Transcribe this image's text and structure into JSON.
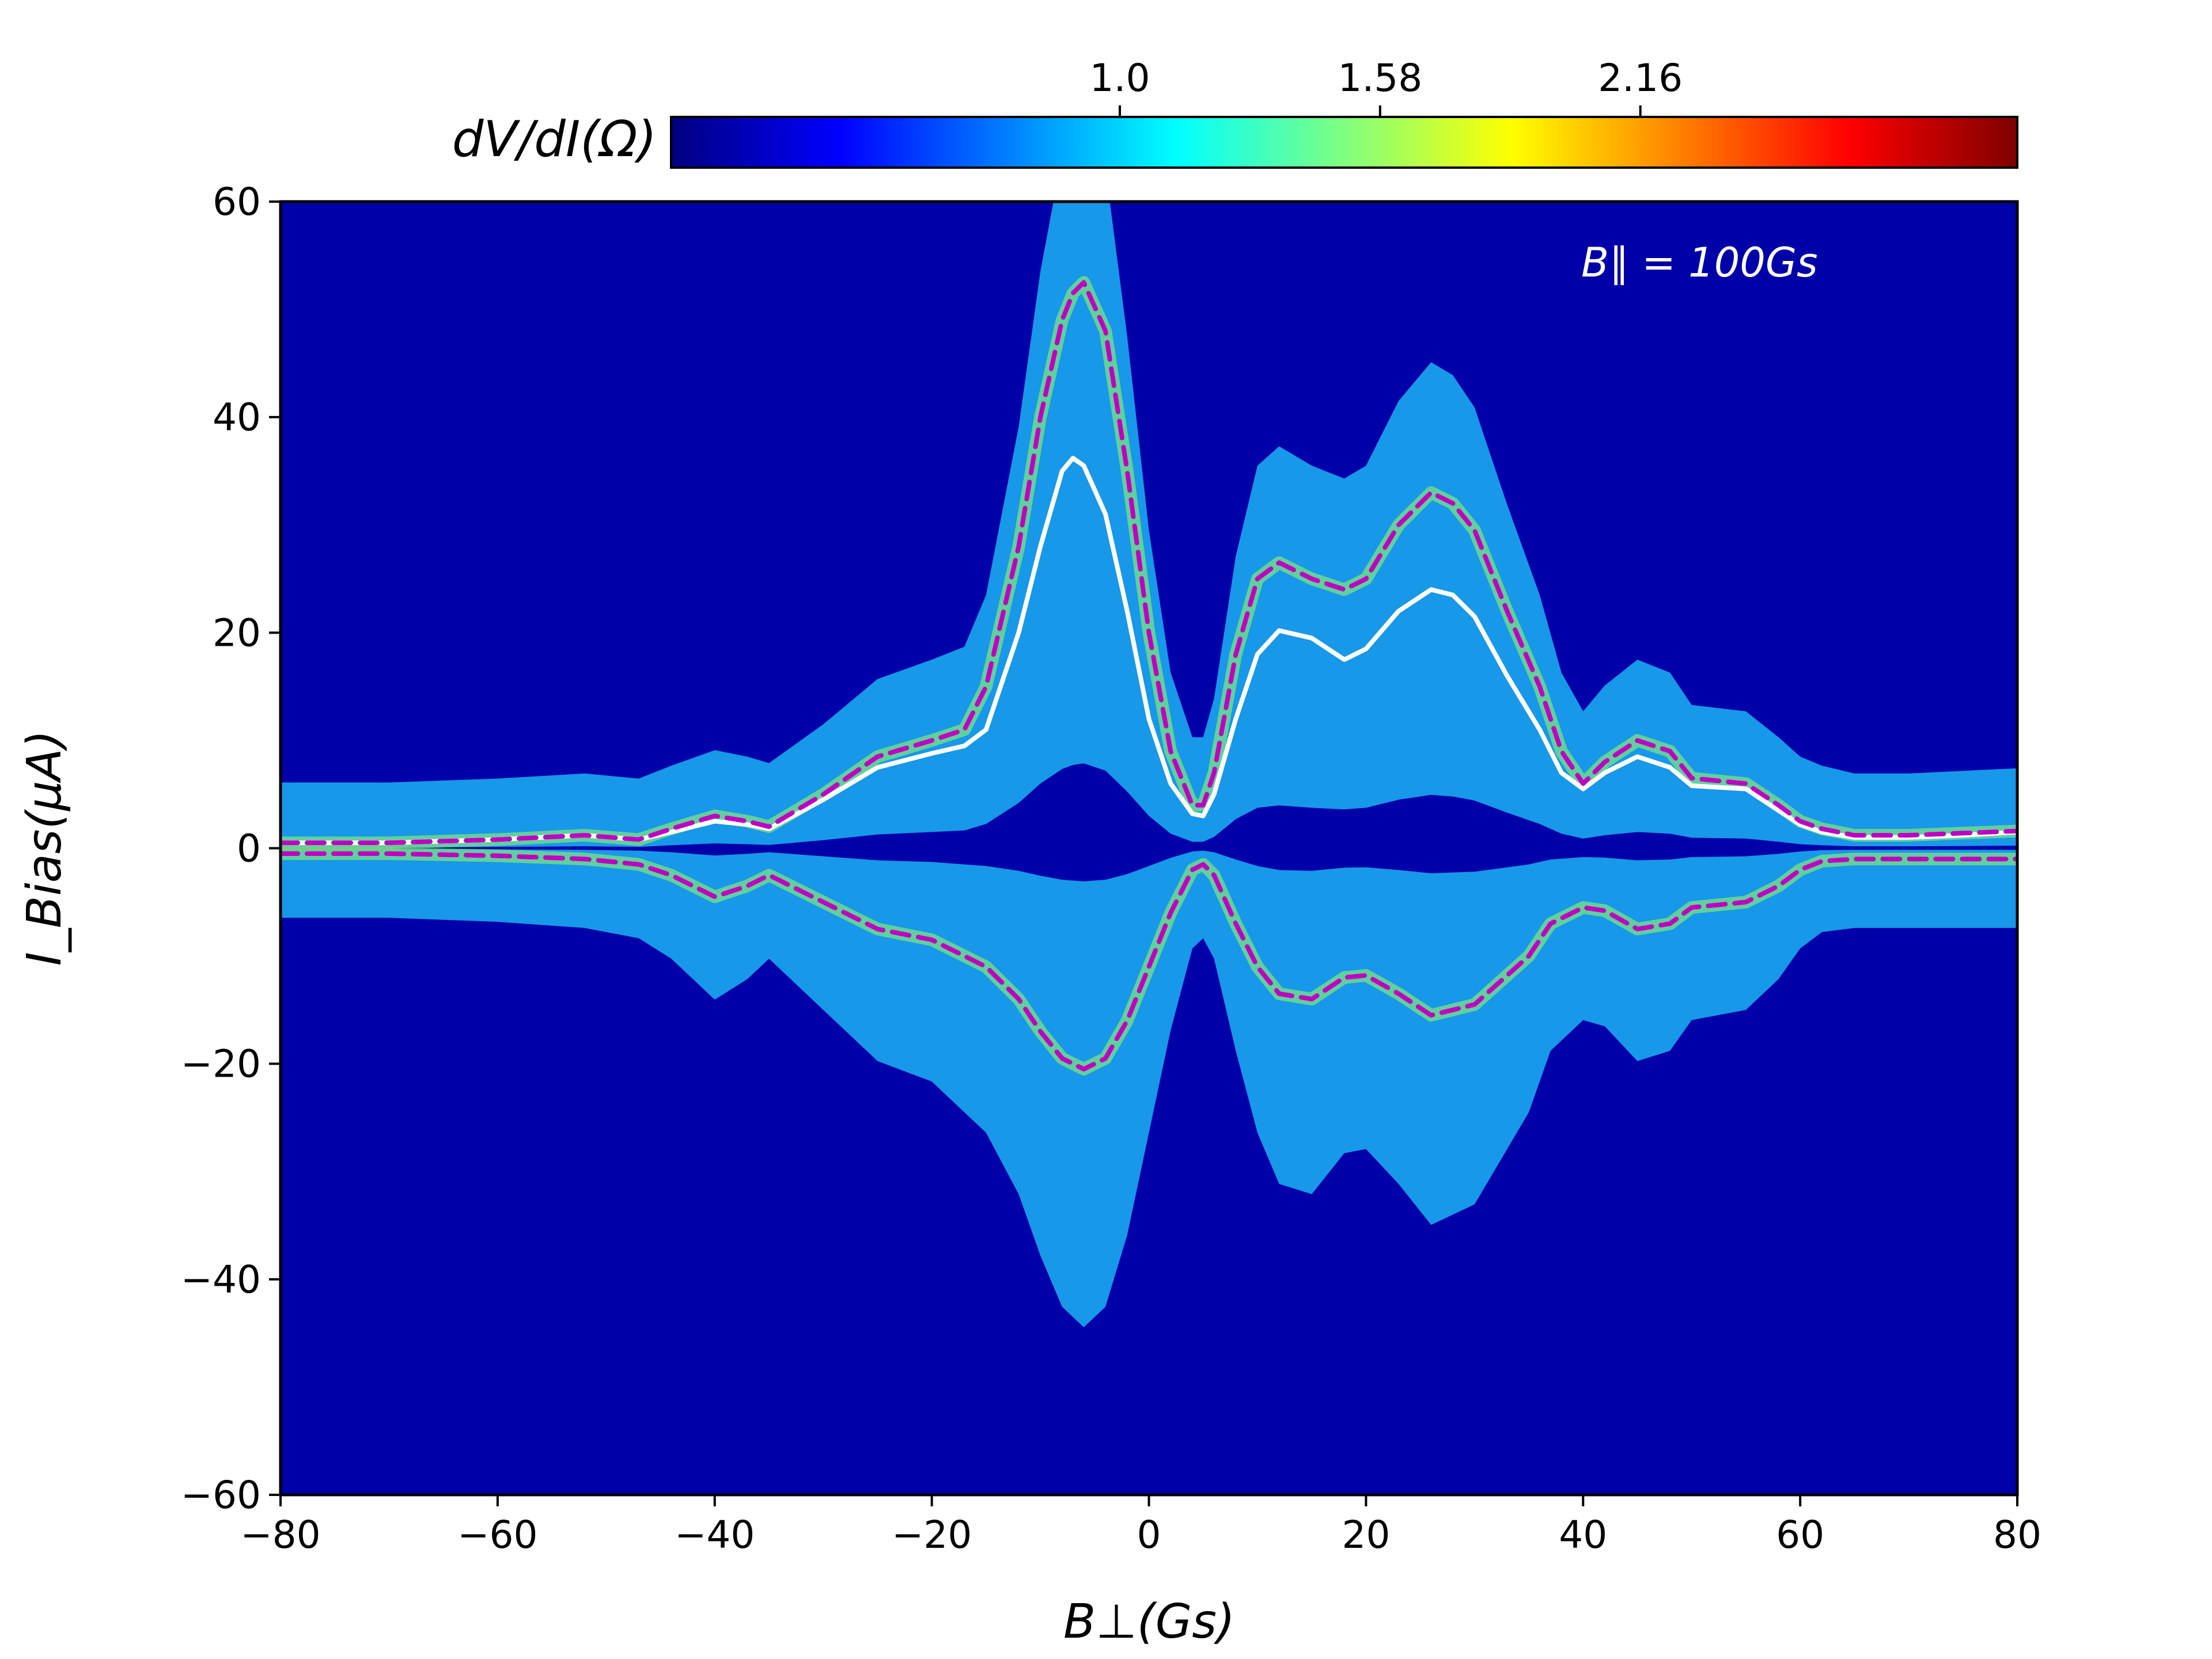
{
  "chart_data": {
    "type": "heatmap",
    "title": "",
    "xlabel": "B⊥(Gs)",
    "ylabel": "I_Bias(μA)",
    "xlim": [
      -80,
      80
    ],
    "ylim": [
      -60,
      60
    ],
    "x_ticks": [
      -80,
      -60,
      -40,
      -20,
      0,
      20,
      40,
      60,
      80
    ],
    "y_ticks": [
      -60,
      -40,
      -20,
      0,
      20,
      40,
      60
    ],
    "x_tick_labels": [
      "−80",
      "−60",
      "−40",
      "−20",
      "0",
      "20",
      "40",
      "60",
      "80"
    ],
    "y_tick_labels": [
      "−60",
      "−40",
      "−20",
      "0",
      "20",
      "40",
      "60"
    ],
    "grid": false,
    "colormap": "jet",
    "background_color": "#0000a8",
    "colorbar": {
      "label": "dV/dI(Ω)",
      "position": "top",
      "range": [
        0.0,
        3.0
      ],
      "ticks": [
        1.0,
        1.58,
        2.16
      ],
      "tick_labels": [
        "1.0",
        "1.58",
        "2.16"
      ]
    },
    "annotation": "B∥ = 100Gs",
    "series": [
      {
        "style": "solid",
        "color": "#ffffff",
        "x": [
          -80,
          -70,
          -60,
          -52,
          -47,
          -44,
          -40,
          -37,
          -35,
          -30,
          -25,
          -20,
          -17,
          -15,
          -12,
          -10,
          -8,
          -7,
          -6,
          -4,
          -2,
          0,
          2,
          4,
          5,
          6,
          8,
          10,
          12,
          15,
          18,
          20,
          23,
          26,
          28,
          30,
          33,
          36,
          38,
          40,
          42,
          45,
          48,
          50,
          55,
          58,
          60,
          62,
          65,
          70,
          75,
          80
        ],
        "y": [
          0.5,
          0.5,
          0.8,
          1.2,
          0.8,
          1.5,
          2.5,
          2.2,
          1.8,
          4.5,
          7.5,
          8.8,
          9.5,
          11,
          20,
          28,
          35,
          36.2,
          35.5,
          31,
          22,
          12,
          6,
          3.2,
          3.0,
          5,
          12,
          18,
          20.2,
          19.5,
          17.5,
          18.5,
          22,
          24,
          23.5,
          21.5,
          16,
          11,
          7,
          5.5,
          7,
          8.5,
          7.5,
          5.8,
          5.5,
          3.5,
          2.2,
          1.5,
          1,
          1,
          1.2,
          1.5
        ]
      },
      {
        "style": "dashed",
        "color": "#c000c0",
        "x": [
          -80,
          -70,
          -60,
          -52,
          -47,
          -44,
          -40,
          -37,
          -35,
          -30,
          -25,
          -20,
          -17,
          -15,
          -12,
          -10,
          -8,
          -7,
          -6,
          -4,
          -2,
          0,
          2,
          4,
          5,
          6,
          8,
          10,
          12,
          15,
          18,
          20,
          23,
          26,
          28,
          30,
          33,
          36,
          38,
          40,
          42,
          45,
          48,
          50,
          55,
          58,
          60,
          62,
          65,
          70,
          75,
          80
        ],
        "y": [
          0.5,
          0.5,
          0.8,
          1.2,
          0.8,
          1.8,
          3.0,
          2.5,
          2.0,
          5.0,
          8.5,
          10.0,
          11.0,
          15.0,
          28.0,
          40.0,
          49.0,
          51.5,
          52.5,
          48.0,
          35.0,
          20.0,
          9.0,
          4.0,
          4.0,
          7.0,
          18.0,
          25.0,
          26.5,
          25.0,
          24.0,
          25.0,
          30.0,
          33.0,
          32.0,
          29.5,
          22.0,
          15.0,
          9.0,
          6.0,
          8.0,
          10.0,
          9.0,
          6.5,
          6.0,
          4.0,
          2.5,
          1.8,
          1.2,
          1.2,
          1.4,
          1.6
        ]
      },
      {
        "style": "dashed",
        "color": "#c000c0",
        "x": [
          -80,
          -70,
          -60,
          -52,
          -47,
          -44,
          -40,
          -37,
          -35,
          -30,
          -25,
          -20,
          -15,
          -12,
          -10,
          -8,
          -6,
          -4,
          -2,
          0,
          2,
          4,
          5,
          6,
          8,
          10,
          12,
          15,
          18,
          20,
          23,
          26,
          30,
          35,
          37,
          40,
          42,
          45,
          48,
          50,
          53,
          55,
          58,
          60,
          62,
          65,
          70,
          75,
          80
        ],
        "y": [
          -0.5,
          -0.5,
          -0.7,
          -1.0,
          -1.5,
          -2.5,
          -4.5,
          -3.5,
          -2.5,
          -5.0,
          -7.5,
          -8.5,
          -11.0,
          -14.0,
          -17.0,
          -19.5,
          -20.5,
          -19.5,
          -16.0,
          -11.0,
          -6.0,
          -2.0,
          -1.5,
          -2.5,
          -7.0,
          -11.0,
          -13.5,
          -14.0,
          -12.0,
          -11.8,
          -13.5,
          -15.5,
          -14.5,
          -10.0,
          -7.0,
          -5.5,
          -5.8,
          -7.5,
          -7.0,
          -5.5,
          -5.2,
          -5.0,
          -3.5,
          -2.0,
          -1.2,
          -1.0,
          -1.0,
          -1.0,
          -1.0
        ]
      }
    ]
  }
}
